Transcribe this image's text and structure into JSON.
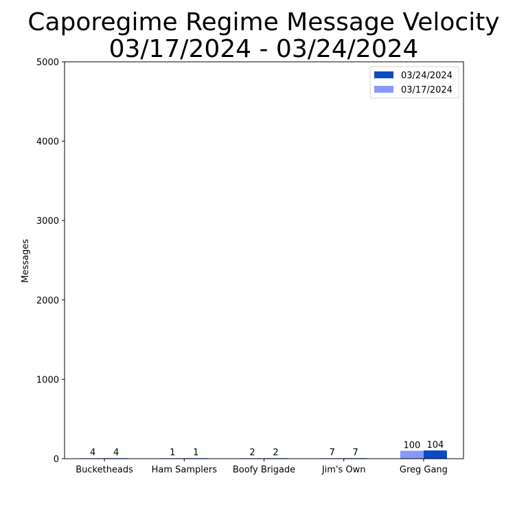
{
  "colors": {
    "current": "#0b4bc4",
    "previous": "#8799fb",
    "axis": "#000000"
  },
  "chart_data": {
    "type": "bar",
    "title_line1": "Caporegime Regime Message Velocity",
    "title_line2": "03/17/2024 - 03/24/2024",
    "xlabel": "",
    "ylabel": "Messages",
    "ylim": [
      0,
      5000
    ],
    "yticks": [
      0,
      1000,
      2000,
      3000,
      4000,
      5000
    ],
    "categories": [
      "Bucketheads",
      "Ham Samplers",
      "Boofy Brigade",
      "Jim's Own",
      "Greg Gang"
    ],
    "series": [
      {
        "name": "03/17/2024",
        "color_key": "previous",
        "values": [
          4,
          1,
          2,
          7,
          100
        ]
      },
      {
        "name": "03/24/2024",
        "color_key": "current",
        "values": [
          4,
          1,
          2,
          7,
          104
        ]
      }
    ],
    "legend": {
      "placement": "top-right",
      "order": [
        "03/24/2024",
        "03/17/2024"
      ]
    },
    "grid": false
  }
}
